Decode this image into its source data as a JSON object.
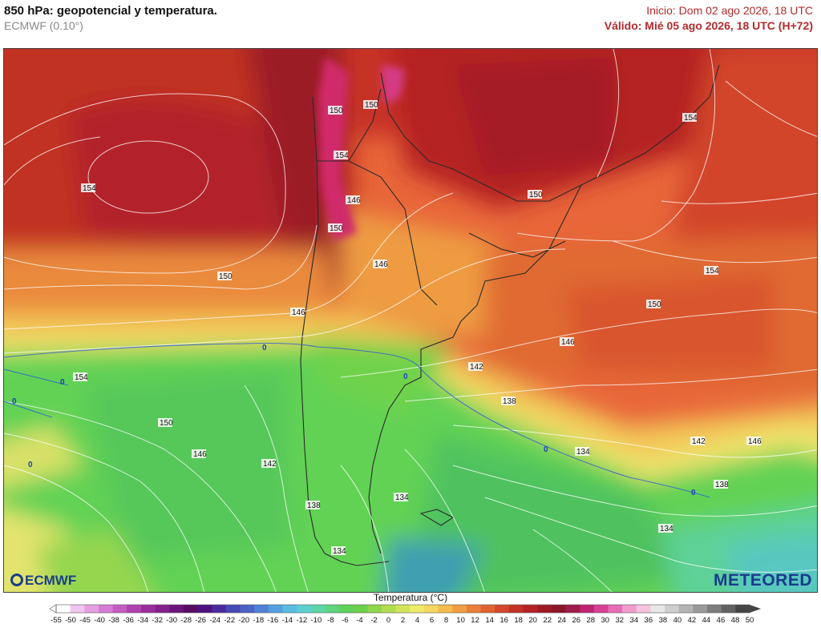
{
  "header": {
    "title": "850 hPa: geopotencial y temperatura.",
    "model": "ECMWF (0.10°)",
    "init": "Inicio: Dom 02 ago 2026, 18 UTC",
    "valid": "Válido: Mié 05 ago 2026, 18 UTC (H+72)"
  },
  "map": {
    "contour_labels": [
      "150",
      "150",
      "154",
      "154",
      "146",
      "150",
      "150",
      "154",
      "146",
      "150",
      "146",
      "150",
      "154",
      "146",
      "142",
      "138",
      "142",
      "146",
      "154",
      "150",
      "146",
      "142",
      "134",
      "138",
      "134",
      "134",
      "138",
      "134",
      "0",
      "0",
      "0",
      "0",
      "0",
      "0",
      "0"
    ]
  },
  "logos": {
    "left": "ECMWF",
    "right": "METEORED"
  },
  "legend": {
    "title": "Temperatura (°C)",
    "ticks": [
      "-55",
      "-50",
      "-45",
      "-40",
      "-38",
      "-36",
      "-34",
      "-32",
      "-30",
      "-28",
      "-26",
      "-24",
      "-22",
      "-20",
      "-18",
      "-16",
      "-14",
      "-12",
      "-10",
      "-8",
      "-6",
      "-4",
      "-2",
      "0",
      "2",
      "4",
      "6",
      "8",
      "10",
      "12",
      "14",
      "16",
      "18",
      "20",
      "22",
      "24",
      "26",
      "28",
      "30",
      "32",
      "34",
      "36",
      "38",
      "40",
      "42",
      "44",
      "46",
      "48",
      "50"
    ],
    "colors": [
      "#ffffff",
      "#f2c6ef",
      "#e6a0e2",
      "#d67cd4",
      "#c45cc3",
      "#b13fb0",
      "#9a2d9e",
      "#83208c",
      "#6e1478",
      "#5a0c64",
      "#4d1280",
      "#4a2a9c",
      "#4747b8",
      "#4a63c8",
      "#4f82d6",
      "#55a0e0",
      "#5abce3",
      "#5dd1d2",
      "#5fd6a8",
      "#5ed47d",
      "#5ed25a",
      "#6cd24b",
      "#8ed64a",
      "#b2dd4f",
      "#d4e45a",
      "#eeea6a",
      "#f6d860",
      "#f6bb4f",
      "#f19d44",
      "#ea7f3a",
      "#e06232",
      "#d4472b",
      "#c63026",
      "#b52223",
      "#9e1a22",
      "#8a1528",
      "#a01a4a",
      "#c0246f",
      "#d84195",
      "#e86cb6",
      "#f19ccd",
      "#f6c4df",
      "#e8e8e8",
      "#cfcfcf",
      "#b4b4b4",
      "#9a9a9a",
      "#7e7e7e",
      "#626262",
      "#444444"
    ]
  }
}
